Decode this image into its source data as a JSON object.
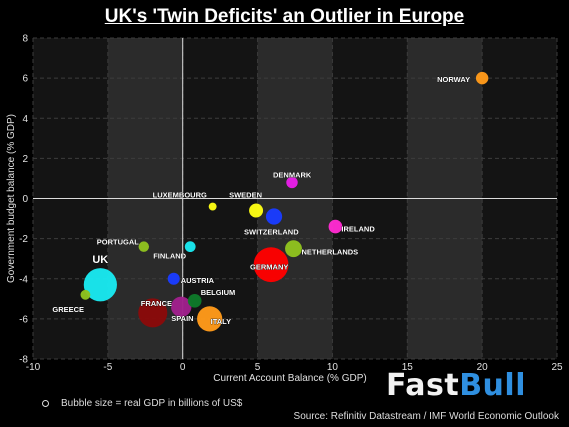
{
  "chart_data": {
    "type": "scatter",
    "title": "UK's 'Twin Deficits' an Outlier in Europe",
    "xlabel": "Current Account Balance (% GDP)",
    "ylabel": "Government budget balance (% GDP)",
    "xlim": [
      -10,
      25
    ],
    "ylim": [
      -8,
      8
    ],
    "xticks": [
      -10,
      -5,
      0,
      5,
      10,
      15,
      20,
      25
    ],
    "yticks": [
      -8,
      -6,
      -4,
      -2,
      0,
      2,
      4,
      6,
      8
    ],
    "grid": true,
    "legend_text": "Bubble size = real GDP in billions of US$",
    "source": "Source: Refinitiv Datastream / IMF World Economic Outlook",
    "points": [
      {
        "label": "NORWAY",
        "x": 20.0,
        "y": 6.0,
        "size": 0.2,
        "color": "#ff9a1a"
      },
      {
        "label": "DENMARK",
        "x": 7.3,
        "y": 0.8,
        "size": 0.17,
        "color": "#e81ee8"
      },
      {
        "label": "SWEDEN",
        "x": 4.9,
        "y": -0.6,
        "size": 0.25,
        "color": "#ffff14"
      },
      {
        "label": "LUXEMBOURG",
        "x": 2.0,
        "y": -0.4,
        "size": 0.06,
        "color": "#ffff14"
      },
      {
        "label": "SWITZERLAND",
        "x": 6.1,
        "y": -0.9,
        "size": 0.32,
        "color": "#1a3cff"
      },
      {
        "label": "IRELAND",
        "x": 10.2,
        "y": -1.4,
        "size": 0.24,
        "color": "#ff2bd1"
      },
      {
        "label": "NETHERLANDS",
        "x": 7.4,
        "y": -2.5,
        "size": 0.34,
        "color": "#8fc21f"
      },
      {
        "label": "GERMANY",
        "x": 5.9,
        "y": -3.3,
        "size": 0.9,
        "color": "#ff0000"
      },
      {
        "label": "PORTUGAL",
        "x": -2.6,
        "y": -2.4,
        "size": 0.14,
        "color": "#8fc21f"
      },
      {
        "label": "FINLAND",
        "x": 0.5,
        "y": -2.4,
        "size": 0.15,
        "color": "#1ae8f0"
      },
      {
        "label": "AUSTRIA",
        "x": -0.6,
        "y": -4.0,
        "size": 0.19,
        "color": "#1a3cff"
      },
      {
        "label": "UK",
        "x": -5.5,
        "y": -4.3,
        "size": 0.85,
        "color": "#1ae8f0"
      },
      {
        "label": "GREECE",
        "x": -6.5,
        "y": -4.8,
        "size": 0.12,
        "color": "#8fc21f"
      },
      {
        "label": "BELGIUM",
        "x": 0.8,
        "y": -5.1,
        "size": 0.24,
        "color": "#0e7a2a"
      },
      {
        "label": "SPAIN",
        "x": -0.1,
        "y": -5.4,
        "size": 0.45,
        "color": "#a0208c"
      },
      {
        "label": "FRANCE",
        "x": -2.0,
        "y": -5.7,
        "size": 0.72,
        "color": "#8a0a0a"
      },
      {
        "label": "ITALY",
        "x": 1.8,
        "y": -6.0,
        "size": 0.6,
        "color": "#ff9a1a"
      }
    ]
  },
  "brand": {
    "part1": "Fast",
    "part2": "Bull"
  }
}
